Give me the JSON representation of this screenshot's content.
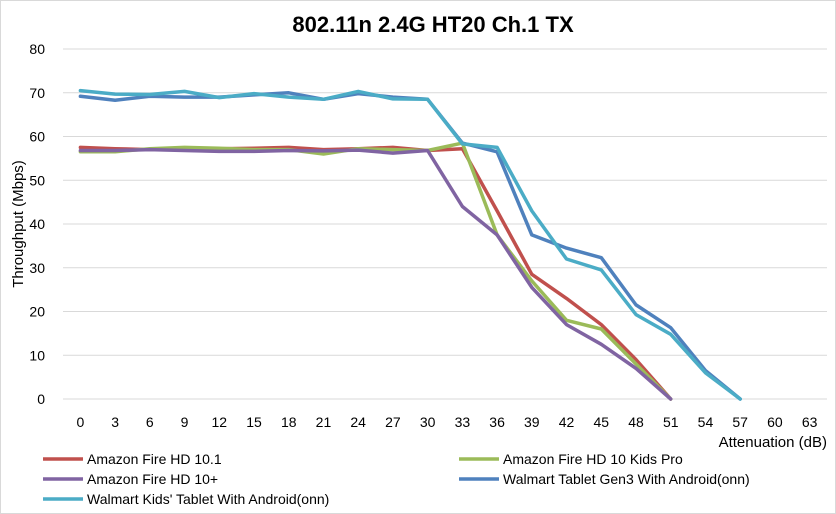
{
  "chart_data": {
    "type": "line",
    "title": "802.11n 2.4G HT20 Ch.1 TX",
    "xlabel": "Attenuation (dB)",
    "ylabel": "Throughput (Mbps)",
    "ylim": [
      0,
      80
    ],
    "yticks": [
      "0",
      "10",
      "20",
      "30",
      "40",
      "50",
      "60",
      "70",
      "80"
    ],
    "categories": [
      "0",
      "3",
      "6",
      "9",
      "12",
      "15",
      "18",
      "21",
      "24",
      "27",
      "30",
      "33",
      "36",
      "39",
      "42",
      "45",
      "48",
      "51",
      "54",
      "57",
      "60",
      "63"
    ],
    "grid": "horizontal",
    "legend_position": "bottom",
    "series": [
      {
        "name": "Amazon Fire HD 10.1",
        "color": "#C0504D",
        "values": [
          57.5,
          57.2,
          57.0,
          57.0,
          57.2,
          57.3,
          57.5,
          57.0,
          57.2,
          57.5,
          56.8,
          57.2,
          43.0,
          28.5,
          23.0,
          17.0,
          9.0,
          0,
          null,
          null,
          null,
          null
        ]
      },
      {
        "name": "Amazon Fire HD 10 Kids Pro",
        "color": "#9BBB59",
        "values": [
          56.5,
          56.5,
          57.2,
          57.5,
          57.3,
          57.0,
          57.0,
          56.0,
          57.2,
          57.0,
          56.8,
          58.5,
          37.5,
          27.0,
          18.0,
          16.0,
          8.0,
          0,
          null,
          null,
          null,
          null
        ]
      },
      {
        "name": "Amazon Fire HD 10+",
        "color": "#8064A2",
        "values": [
          56.8,
          56.8,
          57.0,
          56.8,
          56.6,
          56.6,
          56.8,
          56.7,
          56.9,
          56.2,
          56.8,
          44.0,
          37.5,
          25.5,
          17.0,
          12.5,
          7.0,
          0,
          null,
          null,
          null,
          null
        ]
      },
      {
        "name": "Walmart Tablet Gen3 With Android(onn)",
        "color": "#4F81BD",
        "values": [
          69.2,
          68.3,
          69.2,
          69.0,
          69.0,
          69.5,
          70.0,
          68.5,
          69.8,
          69.0,
          68.5,
          58.5,
          56.5,
          37.5,
          34.5,
          32.3,
          21.5,
          16.3,
          6.5,
          0,
          null,
          null
        ]
      },
      {
        "name": "Walmart Kids' Tablet With Android(onn)",
        "color": "#4BACC6",
        "values": [
          70.5,
          69.7,
          69.6,
          70.3,
          68.9,
          69.8,
          69.0,
          68.5,
          70.3,
          68.6,
          68.5,
          58.3,
          57.5,
          43.0,
          32.0,
          29.5,
          19.3,
          14.8,
          6.0,
          0,
          null,
          null
        ]
      }
    ]
  }
}
